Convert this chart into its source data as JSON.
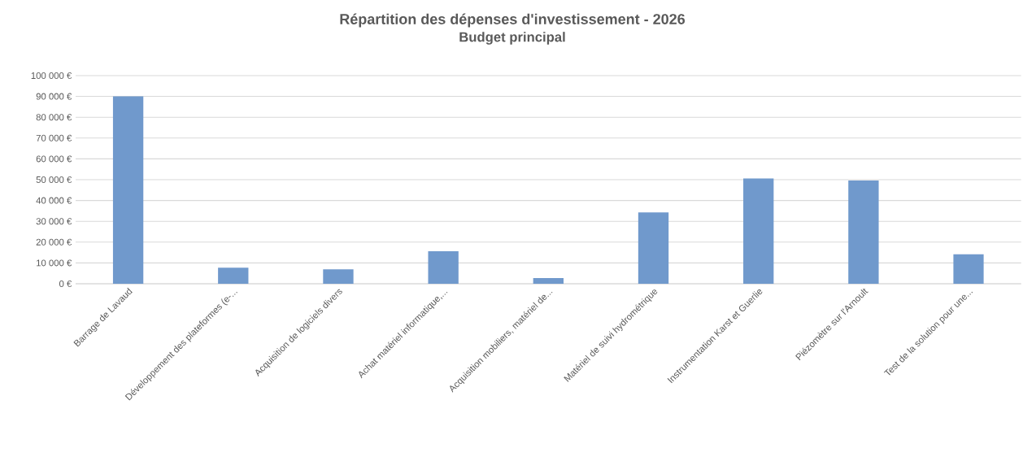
{
  "chart_data": {
    "type": "bar",
    "title": "Répartition des dépenses d'investissement - 2026",
    "subtitle": "Budget principal",
    "categories": [
      "Barrage de Lavaud",
      "Développement des plateformes (e-...",
      "Acquisition de logiciels divers",
      "Achat matériel informatique,...",
      "Acquisition mobiliers, matériel de...",
      "Matériel de suivi hydrométrique",
      "Instrumentation Karst et Guerlie",
      "Piézomètre sur l'Arnoult",
      "Test de la solution pour une..."
    ],
    "values": [
      90000,
      7700,
      6900,
      15600,
      2700,
      34300,
      50600,
      49600,
      14200
    ],
    "color": "#7099cc",
    "ylim": [
      0,
      100000
    ],
    "yticks": [
      {
        "value": 0,
        "label": "0 €"
      },
      {
        "value": 10000,
        "label": "10 000 €"
      },
      {
        "value": 20000,
        "label": "20 000 €"
      },
      {
        "value": 30000,
        "label": "30 000 €"
      },
      {
        "value": 40000,
        "label": "40 000 €"
      },
      {
        "value": 50000,
        "label": "50 000 €"
      },
      {
        "value": 60000,
        "label": "60 000 €"
      },
      {
        "value": 70000,
        "label": "70 000 €"
      },
      {
        "value": 80000,
        "label": "80 000 €"
      },
      {
        "value": 90000,
        "label": "90 000 €"
      },
      {
        "value": 100000,
        "label": "100 000 €"
      }
    ],
    "grid": "y"
  }
}
